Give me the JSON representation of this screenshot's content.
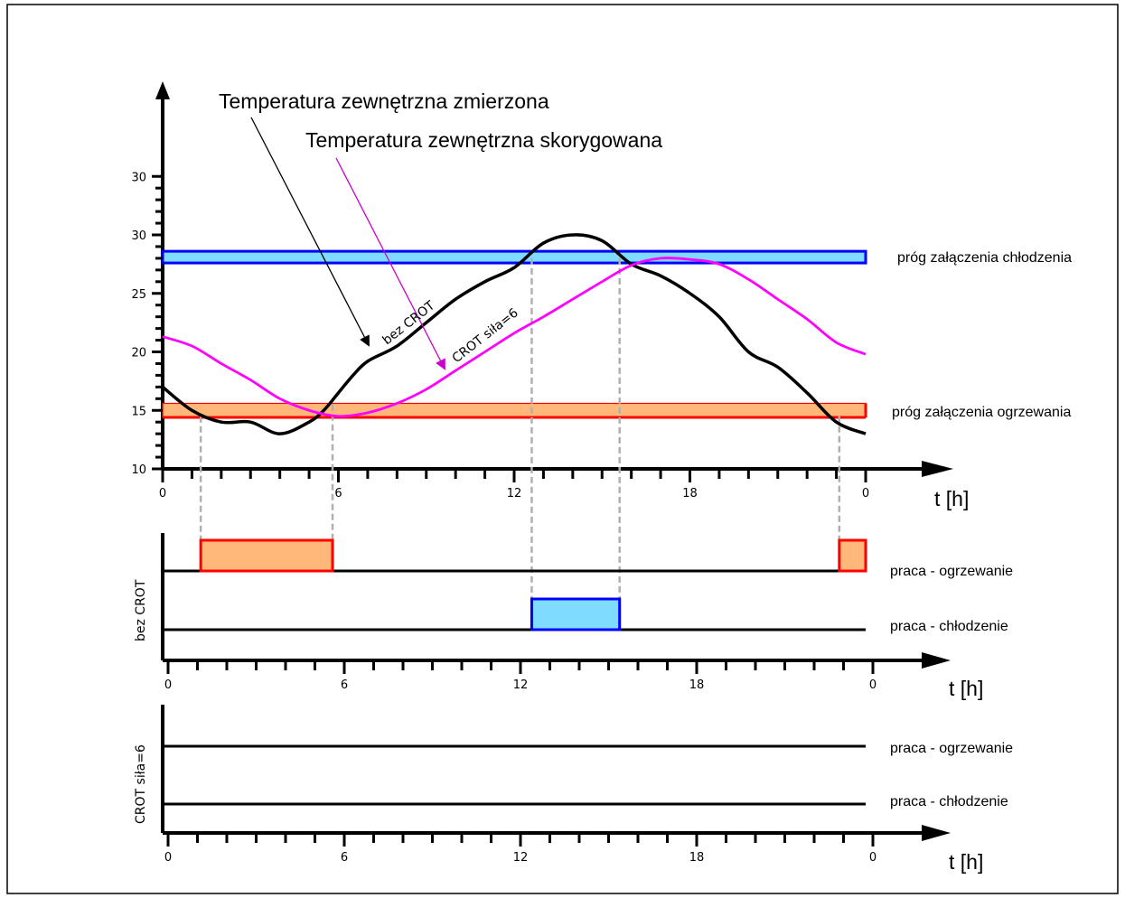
{
  "chart_data": [
    {
      "type": "line",
      "title": "",
      "xlabel": "t [h]",
      "ylabel": "",
      "xlim": [
        0,
        24
      ],
      "ylim": [
        10,
        35
      ],
      "x_tick_labels": [
        "0",
        "6",
        "12",
        "18",
        "0"
      ],
      "y_tick_labels": [
        "10",
        "15",
        "20",
        "25",
        "30",
        "30"
      ],
      "annotations": [
        {
          "text": "Temperatura zewnętrzna zmierzona",
          "color": "#000000"
        },
        {
          "text": "Temperatura zewnętrzna skorygowana",
          "color": "#cc00cc"
        }
      ],
      "thresholds": [
        {
          "name": "próg załączenia chłodzenia",
          "band": [
            27.6,
            28.6
          ],
          "fill": "#7fdbff",
          "stroke": "#0000ff"
        },
        {
          "name": "próg załączenia ogrzewania",
          "band": [
            14.4,
            15.6
          ],
          "fill": "#ffb77a",
          "stroke": "#ff0000"
        }
      ],
      "series": [
        {
          "name": "bez CROT",
          "color": "#000000",
          "x": [
            0,
            1,
            2,
            3,
            4,
            5,
            5.5,
            6,
            6.5,
            7,
            8,
            9,
            10,
            11,
            12,
            13,
            14,
            15,
            16,
            17,
            18,
            19,
            20,
            21,
            22,
            23,
            24
          ],
          "y": [
            17,
            15,
            14,
            14,
            13,
            14,
            15,
            16.5,
            18,
            19.2,
            20.5,
            22.5,
            24.5,
            26,
            27.2,
            29.3,
            30,
            29.5,
            27.5,
            26.5,
            25,
            23,
            20,
            18.7,
            16.5,
            14,
            13
          ]
        },
        {
          "name": "CROT siła=6",
          "color": "#ff00ff",
          "x": [
            0,
            1,
            2,
            3,
            4,
            5,
            6,
            7,
            8,
            9,
            10,
            11,
            12,
            13,
            14,
            15,
            16,
            17,
            18,
            19,
            20,
            21,
            22,
            23,
            24
          ],
          "y": [
            21.3,
            20.5,
            19.0,
            17.6,
            16.0,
            15.0,
            14.5,
            14.8,
            15.6,
            16.8,
            18.4,
            20.0,
            21.6,
            23.0,
            24.5,
            26.0,
            27.4,
            28.0,
            27.9,
            27.5,
            26.2,
            24.5,
            22.8,
            20.8,
            19.8
          ]
        }
      ]
    },
    {
      "type": "bar",
      "lane_label": "bez CROT",
      "xlabel": "t [h]",
      "x_tick_labels": [
        "0",
        "6",
        "12",
        "18",
        "0"
      ],
      "rows": [
        {
          "name": "praca - ogrzewanie",
          "fill": "#ffb77a",
          "stroke": "#ff0000",
          "intervals": [
            [
              1.3,
              5.8
            ],
            [
              23.1,
              24
            ]
          ]
        },
        {
          "name": "praca - chłodzenie",
          "fill": "#7fdbff",
          "stroke": "#0000ff",
          "intervals": [
            [
              12.6,
              15.6
            ]
          ]
        }
      ]
    },
    {
      "type": "bar",
      "lane_label": "CROT siła=6",
      "xlabel": "t [h]",
      "x_tick_labels": [
        "0",
        "6",
        "12",
        "18",
        "0"
      ],
      "rows": [
        {
          "name": "praca - ogrzewanie",
          "intervals": []
        },
        {
          "name": "praca - chłodzenie",
          "intervals": []
        }
      ]
    }
  ]
}
